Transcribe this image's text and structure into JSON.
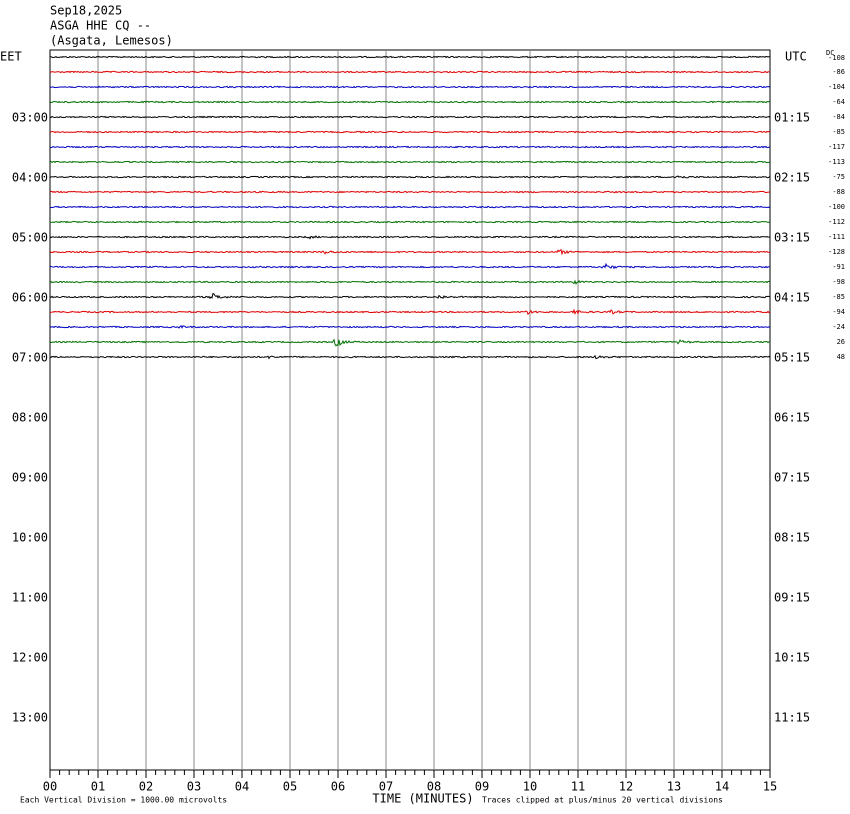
{
  "header": {
    "lines": [
      "Sep18,2025",
      "ASGA HHE CQ --",
      "(Asgata, Lemesos)"
    ]
  },
  "left_label": "EET",
  "right_label": "UTC",
  "dc_label": "DC",
  "eet_hours": [
    "03:00",
    "04:00",
    "05:00",
    "06:00",
    "07:00",
    "08:00",
    "09:00",
    "10:00",
    "11:00",
    "12:00",
    "13:00"
  ],
  "utc_hours": [
    "01:15",
    "02:15",
    "03:15",
    "04:15",
    "05:15",
    "06:15",
    "07:15",
    "08:15",
    "09:15",
    "10:15",
    "11:15"
  ],
  "dc_offsets": [
    "-108",
    "-86",
    "-104",
    "-64",
    "-84",
    "-85",
    "-117",
    "-113",
    "-75",
    "-88",
    "-100",
    "-112",
    "-111",
    "-128",
    "-91",
    "-98",
    "-85",
    "-94",
    "-24",
    "26",
    "48"
  ],
  "minutes": [
    "00",
    "01",
    "02",
    "03",
    "04",
    "05",
    "06",
    "07",
    "08",
    "09",
    "10",
    "11",
    "12",
    "13",
    "14",
    "15"
  ],
  "x_axis_title": "TIME (MINUTES)",
  "footer_left": "Each Vertical Division = 1000.00 microvolts",
  "footer_right": "Traces clipped at plus/minus 20 vertical divisions"
}
